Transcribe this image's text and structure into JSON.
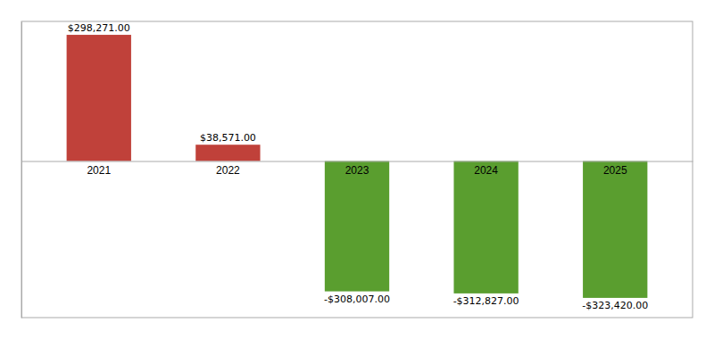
{
  "chart_data": {
    "type": "bar",
    "categories": [
      "2021",
      "2022",
      "2023",
      "2024",
      "2025"
    ],
    "values": [
      298271.0,
      38571.0,
      -308007.0,
      -312827.0,
      -323420.0
    ],
    "value_labels": [
      "$298,271.00",
      "$38,571.00",
      "-$308,007.00",
      "-$312,827.00",
      "-$323,420.00"
    ],
    "colors": [
      "#c0413a",
      "#c0413a",
      "#5a9e2f",
      "#5a9e2f",
      "#5a9e2f"
    ],
    "ylim": [
      -370000,
      330000
    ],
    "data_labels": true,
    "tick_labels": "x"
  }
}
